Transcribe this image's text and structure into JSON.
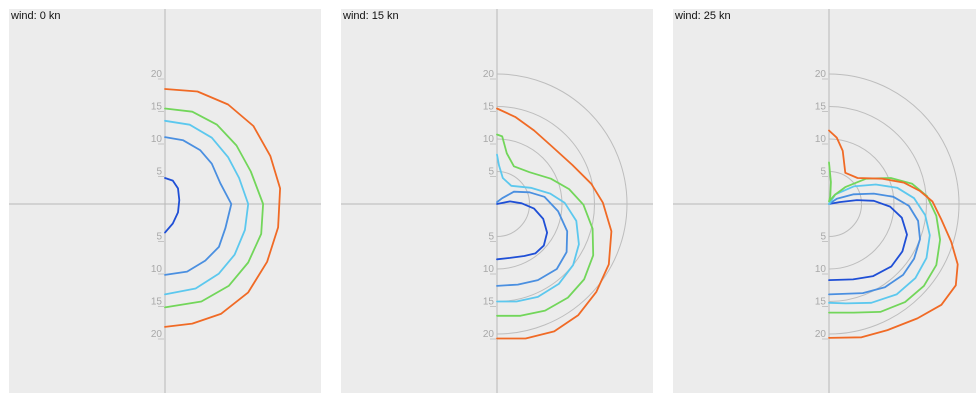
{
  "chart_data": [
    {
      "type": "line",
      "title": "wind: 0 kn",
      "axes": {
        "xlim": [
          -21,
          21
        ],
        "ylim": [
          -26,
          26
        ],
        "ticks": [
          "20",
          "15",
          "10",
          "5",
          "5",
          "10",
          "15",
          "20"
        ],
        "reference_circles": false
      },
      "series": [
        {
          "color": "#1f4fd6",
          "points": [
            [
              0,
              4
            ],
            [
              1.2,
              3.6
            ],
            [
              2,
              2.4
            ],
            [
              2.2,
              0.6
            ],
            [
              2,
              -1.3
            ],
            [
              1.2,
              -3
            ],
            [
              0,
              -4.4
            ]
          ]
        },
        {
          "color": "#4a8fe0",
          "points": [
            [
              0,
              10.3
            ],
            [
              2.8,
              9.8
            ],
            [
              5.4,
              8.3
            ],
            [
              7.2,
              6.2
            ],
            [
              8.5,
              3.2
            ],
            [
              10.2,
              0
            ],
            [
              9.3,
              -3.7
            ],
            [
              8.3,
              -6.6
            ],
            [
              6.2,
              -8.7
            ],
            [
              3.4,
              -10.4
            ],
            [
              0,
              -10.9
            ]
          ]
        },
        {
          "color": "#5cc8ee",
          "points": [
            [
              0,
              12.8
            ],
            [
              3.8,
              12.2
            ],
            [
              7.2,
              10.2
            ],
            [
              9.7,
              7.2
            ],
            [
              11.4,
              4
            ],
            [
              12.8,
              0
            ],
            [
              12.3,
              -4
            ],
            [
              10.7,
              -7.8
            ],
            [
              8.3,
              -10.7
            ],
            [
              4.7,
              -13
            ],
            [
              0,
              -13.9
            ]
          ]
        },
        {
          "color": "#72d65a",
          "points": [
            [
              0,
              14.7
            ],
            [
              4.2,
              14.2
            ],
            [
              8,
              12.2
            ],
            [
              11,
              9
            ],
            [
              13.2,
              5
            ],
            [
              15.1,
              0
            ],
            [
              14.8,
              -4.6
            ],
            [
              12.8,
              -9
            ],
            [
              9.8,
              -12.6
            ],
            [
              5.6,
              -15
            ],
            [
              0,
              -15.9
            ]
          ]
        },
        {
          "color": "#f06a25",
          "points": [
            [
              0,
              17.7
            ],
            [
              5,
              17.3
            ],
            [
              9.7,
              15.3
            ],
            [
              13.6,
              12
            ],
            [
              16.2,
              7.4
            ],
            [
              17.7,
              2.4
            ],
            [
              17.4,
              -3.6
            ],
            [
              15.7,
              -8.9
            ],
            [
              12.8,
              -13.6
            ],
            [
              8.6,
              -16.9
            ],
            [
              4.2,
              -18.4
            ],
            [
              0,
              -18.9
            ]
          ]
        }
      ]
    },
    {
      "type": "line",
      "title": "wind: 15 kn",
      "axes": {
        "xlim": [
          -21,
          21
        ],
        "ylim": [
          -26,
          26
        ],
        "ticks": [
          "20",
          "15",
          "10",
          "5",
          "5",
          "10",
          "15",
          "20"
        ],
        "reference_circles": true
      },
      "series": [
        {
          "color": "#1f4fd6",
          "points": [
            [
              0,
              0
            ],
            [
              2,
              0.4
            ],
            [
              3.8,
              0.1
            ],
            [
              5.7,
              -0.7
            ],
            [
              7.1,
              -2.3
            ],
            [
              7.7,
              -4.4
            ],
            [
              7.2,
              -6.4
            ],
            [
              5.9,
              -7.6
            ],
            [
              4.2,
              -8
            ],
            [
              2,
              -8.3
            ],
            [
              0,
              -8.5
            ]
          ]
        },
        {
          "color": "#4a8fe0",
          "points": [
            [
              0,
              0.3
            ],
            [
              0.8,
              0.9
            ],
            [
              2.6,
              1.9
            ],
            [
              5,
              1.8
            ],
            [
              7.3,
              1.1
            ],
            [
              9.4,
              -1.1
            ],
            [
              10.8,
              -4.2
            ],
            [
              10.7,
              -7.4
            ],
            [
              9.2,
              -10
            ],
            [
              6.3,
              -11.7
            ],
            [
              3.2,
              -12.4
            ],
            [
              0,
              -12.6
            ]
          ]
        },
        {
          "color": "#5cc8ee",
          "points": [
            [
              0,
              7.6
            ],
            [
              0.3,
              6
            ],
            [
              0.9,
              4
            ],
            [
              2.2,
              2.8
            ],
            [
              5.2,
              2.5
            ],
            [
              8.2,
              1.6
            ],
            [
              10.4,
              0.2
            ],
            [
              12.2,
              -2.6
            ],
            [
              12.6,
              -6.2
            ],
            [
              11.7,
              -9.4
            ],
            [
              9.5,
              -12.3
            ],
            [
              6.3,
              -14.3
            ],
            [
              3,
              -15
            ],
            [
              0,
              -15
            ]
          ]
        },
        {
          "color": "#72d65a",
          "points": [
            [
              0,
              10.7
            ],
            [
              0.8,
              10.4
            ],
            [
              1.5,
              7.8
            ],
            [
              2.6,
              5.8
            ],
            [
              5,
              4.9
            ],
            [
              8.3,
              3.9
            ],
            [
              11.1,
              2.3
            ],
            [
              13.3,
              -0.1
            ],
            [
              14.7,
              -3.8
            ],
            [
              14.8,
              -7.9
            ],
            [
              13.4,
              -11.6
            ],
            [
              10.9,
              -14.4
            ],
            [
              7.4,
              -16.4
            ],
            [
              3.6,
              -17.2
            ],
            [
              0,
              -17.2
            ]
          ]
        },
        {
          "color": "#f06a25",
          "points": [
            [
              0,
              14.7
            ],
            [
              2.8,
              13.4
            ],
            [
              5.7,
              11.3
            ],
            [
              8.3,
              9
            ],
            [
              11.6,
              6
            ],
            [
              14.5,
              3.1
            ],
            [
              16.3,
              0.2
            ],
            [
              17.6,
              -4.2
            ],
            [
              17.2,
              -9.3
            ],
            [
              15.3,
              -13.5
            ],
            [
              12.5,
              -17.1
            ],
            [
              8.8,
              -19.6
            ],
            [
              4.4,
              -20.7
            ],
            [
              0,
              -20.7
            ]
          ]
        }
      ]
    },
    {
      "type": "line",
      "title": "wind: 25 kn",
      "axes": {
        "xlim": [
          -21,
          21
        ],
        "ylim": [
          -26,
          26
        ],
        "ticks": [
          "20",
          "15",
          "10",
          "5",
          "5",
          "10",
          "15",
          "20"
        ],
        "reference_circles": true
      },
      "series": [
        {
          "color": "#1f4fd6",
          "points": [
            [
              0,
              0
            ],
            [
              1.6,
              0.3
            ],
            [
              4.3,
              0.6
            ],
            [
              6.9,
              0.5
            ],
            [
              9.4,
              -0.4
            ],
            [
              11.2,
              -2.1
            ],
            [
              12,
              -4.7
            ],
            [
              11.3,
              -7.3
            ],
            [
              9.6,
              -9.6
            ],
            [
              6.8,
              -11.1
            ],
            [
              3.7,
              -11.6
            ],
            [
              0,
              -11.7
            ]
          ]
        },
        {
          "color": "#4a8fe0",
          "points": [
            [
              0,
              0
            ],
            [
              1.2,
              0.8
            ],
            [
              3.8,
              1.5
            ],
            [
              6.9,
              1.6
            ],
            [
              9.9,
              1.1
            ],
            [
              12.3,
              -0.3
            ],
            [
              13.7,
              -2.6
            ],
            [
              14,
              -5.4
            ],
            [
              13.1,
              -8.4
            ],
            [
              11.4,
              -10.9
            ],
            [
              8.6,
              -12.8
            ],
            [
              5.2,
              -13.7
            ],
            [
              0,
              -13.9
            ]
          ]
        },
        {
          "color": "#5cc8ee",
          "points": [
            [
              0,
              0
            ],
            [
              1,
              1.5
            ],
            [
              3.8,
              2.7
            ],
            [
              7.2,
              3
            ],
            [
              10.5,
              2.5
            ],
            [
              13.1,
              0.9
            ],
            [
              14.8,
              -1.7
            ],
            [
              15.5,
              -4.8
            ],
            [
              15,
              -8.3
            ],
            [
              13.3,
              -11.4
            ],
            [
              10.4,
              -13.9
            ],
            [
              6.5,
              -15.2
            ],
            [
              2.6,
              -15.3
            ],
            [
              0,
              -15.2
            ]
          ]
        },
        {
          "color": "#72d65a",
          "points": [
            [
              0,
              6.4
            ],
            [
              0.3,
              3.4
            ],
            [
              0.2,
              1.2
            ],
            [
              0,
              0.4
            ],
            [
              0.9,
              1.4
            ],
            [
              2.5,
              2.6
            ],
            [
              5.7,
              3.9
            ],
            [
              9.5,
              4
            ],
            [
              12.8,
              3.1
            ],
            [
              15.1,
              1.2
            ],
            [
              16.5,
              -1.8
            ],
            [
              17.1,
              -5.5
            ],
            [
              16.5,
              -9.4
            ],
            [
              14.6,
              -12.6
            ],
            [
              11.7,
              -15.1
            ],
            [
              7.9,
              -16.6
            ],
            [
              3.8,
              -16.7
            ],
            [
              0,
              -16.7
            ]
          ]
        },
        {
          "color": "#f06a25",
          "points": [
            [
              0,
              11.3
            ],
            [
              1.2,
              10.2
            ],
            [
              2.1,
              8.2
            ],
            [
              2.5,
              4.8
            ],
            [
              4.4,
              4
            ],
            [
              8.2,
              3.9
            ],
            [
              11.5,
              3.3
            ],
            [
              14,
              2
            ],
            [
              15.9,
              0.4
            ],
            [
              17.3,
              -2.4
            ],
            [
              18.8,
              -5.8
            ],
            [
              19.8,
              -9.3
            ],
            [
              19.5,
              -12.5
            ],
            [
              17.3,
              -15.5
            ],
            [
              13.6,
              -17.6
            ],
            [
              9,
              -19.4
            ],
            [
              5,
              -20.5
            ],
            [
              0,
              -20.6
            ]
          ]
        }
      ]
    }
  ]
}
